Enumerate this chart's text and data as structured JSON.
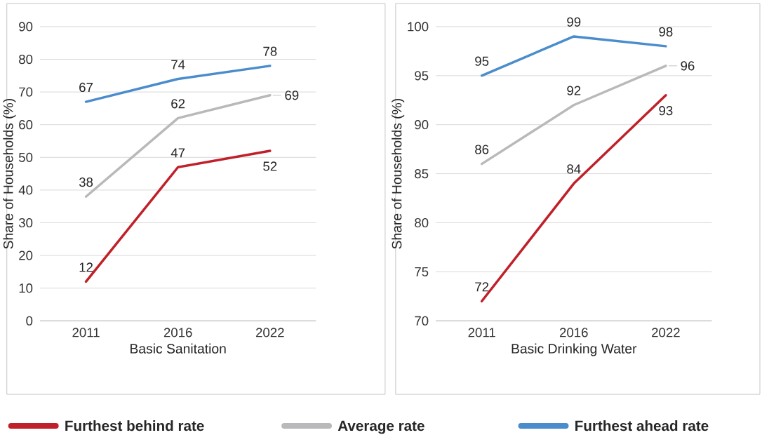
{
  "chart_data": [
    {
      "type": "line",
      "xlabel": "Basic Sanitation",
      "ylabel": "Share of Households (%)",
      "categories": [
        "2011",
        "2016",
        "2022"
      ],
      "series": [
        {
          "name": "Furthest behind rate",
          "color": "#c0202a",
          "values": [
            12,
            47,
            52
          ]
        },
        {
          "name": "Average rate",
          "color": "#b9b9bc",
          "values": [
            38,
            62,
            69
          ]
        },
        {
          "name": "Furthest ahead rate",
          "color": "#4a8ccc",
          "values": [
            67,
            74,
            78
          ]
        }
      ],
      "ylim": [
        0,
        90
      ],
      "yticks": [
        0,
        10,
        20,
        30,
        40,
        50,
        60,
        70,
        80,
        90
      ],
      "grid": "y",
      "legend": "bottom",
      "data_labels": true,
      "marker": "none",
      "line_style": "solid"
    },
    {
      "type": "line",
      "xlabel": "Basic Drinking Water",
      "ylabel": "Share of Households (%)",
      "categories": [
        "2011",
        "2016",
        "2022"
      ],
      "series": [
        {
          "color": "#c0202a",
          "values": [
            72,
            84,
            93
          ]
        },
        {
          "color": "#b9b9bc",
          "values": [
            86,
            92,
            96
          ]
        },
        {
          "color": "#4a8ccc",
          "values": [
            95,
            99,
            98
          ]
        }
      ],
      "ylim": [
        70,
        100
      ],
      "yticks": [
        70,
        75,
        80,
        85,
        90,
        95,
        100
      ],
      "grid": "y",
      "data_labels": true,
      "marker": "none",
      "line_style": "solid"
    }
  ]
}
